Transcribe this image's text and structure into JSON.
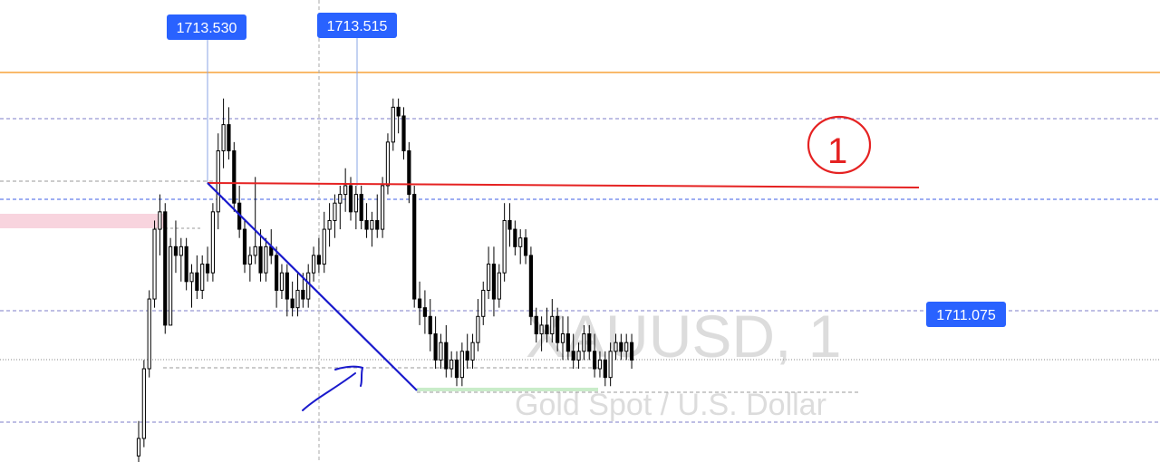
{
  "watermark": {
    "symbol": "XAUUSD, 1",
    "description": "Gold Spot / U.S. Dollar"
  },
  "annotations": {
    "circled_number": "1"
  },
  "colors": {
    "background": "#ffffff",
    "candle": "#000000",
    "price_label": "#2962ff",
    "horizontal_level": "#f7a43a",
    "resistance_line": "#e52222",
    "trend_line": "#1a1acc",
    "watermark": "#d9d9d9",
    "pink_zone": "#f8d4de",
    "green_zone": "#c9ecc9"
  },
  "chart_data": {
    "type": "candlestick",
    "symbol": "XAUUSD",
    "timeframe": "1",
    "price_labels": [
      "1713.530",
      "1713.515",
      "1711.075"
    ],
    "levels": {
      "orange_horizontal": 1714.0,
      "blue_horizontal": 1713.14,
      "resistance_start": 1713.53,
      "resistance_end": 1713.5,
      "trend_high": 1713.53,
      "trend_low": 1710.2
    },
    "ylim": [
      1709.33,
      1714.63
    ],
    "candles": [
      [
        1709.4,
        1709.8,
        1709.3,
        1709.6
      ],
      [
        1709.6,
        1710.5,
        1709.5,
        1710.4
      ],
      [
        1710.4,
        1711.3,
        1710.3,
        1711.2
      ],
      [
        1711.2,
        1712.1,
        1711.1,
        1712.0
      ],
      [
        1712.0,
        1712.4,
        1711.7,
        1712.2
      ],
      [
        1712.2,
        1712.3,
        1710.8,
        1710.9
      ],
      [
        1710.9,
        1711.9,
        1710.9,
        1711.8
      ],
      [
        1711.8,
        1712.1,
        1711.5,
        1711.7
      ],
      [
        1711.7,
        1711.9,
        1711.4,
        1711.8
      ],
      [
        1711.8,
        1711.9,
        1711.3,
        1711.4
      ],
      [
        1711.4,
        1711.6,
        1711.1,
        1711.5
      ],
      [
        1711.5,
        1711.7,
        1711.2,
        1711.3
      ],
      [
        1711.3,
        1711.7,
        1711.2,
        1711.6
      ],
      [
        1711.6,
        1711.8,
        1711.4,
        1711.5
      ],
      [
        1711.5,
        1712.3,
        1711.4,
        1712.2
      ],
      [
        1712.2,
        1713.1,
        1712.0,
        1712.9
      ],
      [
        1712.9,
        1713.5,
        1712.7,
        1713.2
      ],
      [
        1713.2,
        1713.4,
        1712.8,
        1712.9
      ],
      [
        1712.9,
        1713.0,
        1712.2,
        1712.3
      ],
      [
        1712.3,
        1712.5,
        1711.9,
        1712.0
      ],
      [
        1712.0,
        1712.1,
        1711.5,
        1711.6
      ],
      [
        1711.6,
        1711.8,
        1711.4,
        1711.7
      ],
      [
        1711.7,
        1712.6,
        1711.6,
        1711.8
      ],
      [
        1711.8,
        1712.0,
        1711.4,
        1711.5
      ],
      [
        1711.5,
        1711.9,
        1711.4,
        1711.8
      ],
      [
        1711.8,
        1712.0,
        1711.6,
        1711.7
      ],
      [
        1711.7,
        1711.8,
        1711.1,
        1711.3
      ],
      [
        1711.3,
        1711.6,
        1711.2,
        1711.5
      ],
      [
        1711.5,
        1711.6,
        1711.0,
        1711.2
      ],
      [
        1711.2,
        1711.4,
        1711.0,
        1711.1
      ],
      [
        1711.1,
        1711.5,
        1711.0,
        1711.3
      ],
      [
        1711.3,
        1711.5,
        1711.1,
        1711.2
      ],
      [
        1711.2,
        1711.6,
        1711.1,
        1711.5
      ],
      [
        1711.5,
        1711.8,
        1711.4,
        1711.7
      ],
      [
        1711.7,
        1711.9,
        1711.5,
        1711.6
      ],
      [
        1711.6,
        1712.2,
        1711.5,
        1712.0
      ],
      [
        1712.0,
        1712.3,
        1711.8,
        1712.1
      ],
      [
        1712.1,
        1712.4,
        1711.9,
        1712.3
      ],
      [
        1712.3,
        1712.5,
        1712.0,
        1712.4
      ],
      [
        1712.4,
        1712.7,
        1712.2,
        1712.5
      ],
      [
        1712.5,
        1712.6,
        1712.1,
        1712.2
      ],
      [
        1712.2,
        1712.5,
        1712.0,
        1712.4
      ],
      [
        1712.4,
        1712.5,
        1712.0,
        1712.1
      ],
      [
        1712.1,
        1712.3,
        1711.9,
        1712.0
      ],
      [
        1712.0,
        1712.2,
        1711.8,
        1712.1
      ],
      [
        1712.1,
        1712.4,
        1711.9,
        1712.0
      ],
      [
        1712.0,
        1712.6,
        1711.9,
        1712.5
      ],
      [
        1712.5,
        1713.1,
        1712.4,
        1713.0
      ],
      [
        1713.0,
        1713.5,
        1712.9,
        1713.4
      ],
      [
        1713.4,
        1713.5,
        1713.1,
        1713.3
      ],
      [
        1713.3,
        1713.4,
        1712.8,
        1712.9
      ],
      [
        1712.9,
        1713.0,
        1712.3,
        1712.4
      ],
      [
        1712.4,
        1712.5,
        1711.1,
        1711.2
      ],
      [
        1711.2,
        1711.4,
        1710.9,
        1711.1
      ],
      [
        1711.1,
        1711.3,
        1710.8,
        1711.0
      ],
      [
        1711.0,
        1711.2,
        1710.6,
        1710.8
      ],
      [
        1710.8,
        1711.0,
        1710.4,
        1710.5
      ],
      [
        1710.5,
        1710.8,
        1710.4,
        1710.7
      ],
      [
        1710.7,
        1710.9,
        1710.3,
        1710.4
      ],
      [
        1710.4,
        1710.6,
        1710.3,
        1710.5
      ],
      [
        1710.5,
        1710.6,
        1710.2,
        1710.3
      ],
      [
        1710.3,
        1710.7,
        1710.2,
        1710.6
      ],
      [
        1710.6,
        1710.8,
        1710.4,
        1710.5
      ],
      [
        1710.5,
        1710.8,
        1710.4,
        1710.7
      ],
      [
        1710.7,
        1711.2,
        1710.6,
        1711.0
      ],
      [
        1711.0,
        1711.4,
        1710.9,
        1711.3
      ],
      [
        1711.3,
        1711.8,
        1711.2,
        1711.6
      ],
      [
        1711.6,
        1711.8,
        1711.0,
        1711.2
      ],
      [
        1711.2,
        1711.6,
        1711.1,
        1711.5
      ],
      [
        1711.5,
        1712.3,
        1711.4,
        1712.1
      ],
      [
        1712.1,
        1712.3,
        1711.8,
        1712.0
      ],
      [
        1712.0,
        1712.1,
        1711.7,
        1711.8
      ],
      [
        1711.8,
        1712.0,
        1711.6,
        1711.9
      ],
      [
        1711.9,
        1712.0,
        1711.6,
        1711.7
      ],
      [
        1711.7,
        1711.8,
        1710.9,
        1711.0
      ],
      [
        1711.0,
        1711.1,
        1710.7,
        1710.8
      ],
      [
        1710.8,
        1711.0,
        1710.6,
        1710.9
      ],
      [
        1710.9,
        1711.1,
        1710.7,
        1710.8
      ],
      [
        1710.8,
        1711.2,
        1710.7,
        1711.0
      ],
      [
        1711.0,
        1711.1,
        1710.6,
        1710.7
      ],
      [
        1710.7,
        1711.0,
        1710.5,
        1710.8
      ],
      [
        1710.8,
        1711.0,
        1710.5,
        1710.6
      ],
      [
        1710.6,
        1710.8,
        1710.4,
        1710.5
      ],
      [
        1710.5,
        1710.7,
        1710.4,
        1710.6
      ],
      [
        1710.6,
        1710.9,
        1710.5,
        1710.8
      ],
      [
        1710.8,
        1710.9,
        1710.5,
        1710.6
      ],
      [
        1710.6,
        1710.8,
        1710.3,
        1710.4
      ],
      [
        1710.4,
        1710.6,
        1710.3,
        1710.5
      ],
      [
        1710.5,
        1710.6,
        1710.2,
        1710.3
      ],
      [
        1710.3,
        1710.7,
        1710.2,
        1710.6
      ],
      [
        1710.6,
        1710.8,
        1710.5,
        1710.7
      ],
      [
        1710.7,
        1710.8,
        1710.5,
        1710.6
      ],
      [
        1710.6,
        1710.8,
        1710.5,
        1710.7
      ],
      [
        1710.7,
        1710.8,
        1710.4,
        1710.5
      ]
    ]
  }
}
